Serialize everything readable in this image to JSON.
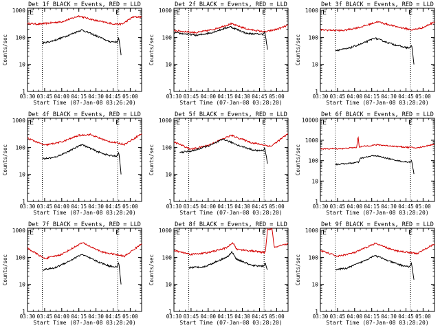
{
  "chart_data": [
    {
      "type": "line",
      "title": "Det 1f BLACK = Events, RED = LLD",
      "xlabel": "Start Time (07-Jan-08 03:26:20)",
      "ylabel": "Counts/sec",
      "x_ticks": [
        "03:30",
        "03:45",
        "04:00",
        "04:15",
        "04:30",
        "04:45",
        "05:00"
      ],
      "y_ticks": [
        "1",
        "10",
        "100",
        "1000"
      ],
      "ylim": [
        1,
        1200
      ],
      "log_y": true,
      "markers": [
        "03:43",
        "04:49"
      ],
      "marker_labels": [
        "E",
        "E"
      ],
      "series": [
        {
          "color": "#000000",
          "x_start": "03:43",
          "x_end": "04:52",
          "points": [
            [
              0,
              62
            ],
            [
              0.12,
              72
            ],
            [
              0.3,
              110
            ],
            [
              0.5,
              190
            ],
            [
              0.7,
              110
            ],
            [
              0.85,
              70
            ],
            [
              0.95,
              68
            ],
            [
              0.97,
              100
            ],
            [
              1,
              22
            ]
          ]
        },
        {
          "color": "#d40000",
          "x_start": "03:30",
          "x_end": "05:10",
          "points": [
            [
              0,
              330
            ],
            [
              0.1,
              310
            ],
            [
              0.3,
              380
            ],
            [
              0.45,
              620
            ],
            [
              0.6,
              420
            ],
            [
              0.75,
              320
            ],
            [
              0.83,
              310
            ],
            [
              0.92,
              560
            ],
            [
              1,
              580
            ]
          ]
        }
      ]
    },
    {
      "type": "line",
      "title": "Det 2f BLACK = Events, RED = LLD",
      "xlabel": "Start Time (07-Jan-08 03:28:20)",
      "ylabel": "Counts/sec",
      "x_ticks": [
        "03:30",
        "03:45",
        "04:00",
        "04:15",
        "04:30",
        "04:45",
        "05:00"
      ],
      "y_ticks": [
        "1",
        "10",
        "100",
        "1000"
      ],
      "ylim": [
        1,
        1200
      ],
      "log_y": true,
      "markers": [
        "03:43",
        "04:49"
      ],
      "marker_labels": [
        "E",
        "E"
      ],
      "series": [
        {
          "color": "#000000",
          "x_start": "03:30",
          "x_end": "04:52",
          "points": [
            [
              0,
              150
            ],
            [
              0.25,
              120
            ],
            [
              0.4,
              150
            ],
            [
              0.6,
              250
            ],
            [
              0.78,
              140
            ],
            [
              0.95,
              130
            ],
            [
              0.97,
              170
            ],
            [
              1,
              35
            ]
          ]
        },
        {
          "color": "#d40000",
          "x_start": "03:30",
          "x_end": "05:10",
          "points": [
            [
              0,
              180
            ],
            [
              0.2,
              150
            ],
            [
              0.35,
              200
            ],
            [
              0.5,
              320
            ],
            [
              0.65,
              200
            ],
            [
              0.8,
              160
            ],
            [
              0.9,
              200
            ],
            [
              1,
              280
            ]
          ]
        }
      ]
    },
    {
      "type": "line",
      "title": "Det 3f BLACK = Events, RED = LLD",
      "xlabel": "Start Time (07-Jan-08 03:28:20)",
      "ylabel": "Counts/sec",
      "x_ticks": [
        "03:30",
        "03:45",
        "04:00",
        "04:15",
        "04:30",
        "04:45",
        "05:00"
      ],
      "y_ticks": [
        "1",
        "10",
        "100",
        "1000"
      ],
      "ylim": [
        1,
        1200
      ],
      "log_y": true,
      "markers": [
        "03:43",
        "04:49"
      ],
      "marker_labels": [
        "E",
        "E"
      ],
      "series": [
        {
          "color": "#000000",
          "x_start": "03:43",
          "x_end": "04:52",
          "points": [
            [
              0,
              33
            ],
            [
              0.15,
              38
            ],
            [
              0.35,
              60
            ],
            [
              0.5,
              95
            ],
            [
              0.7,
              60
            ],
            [
              0.85,
              45
            ],
            [
              0.95,
              40
            ],
            [
              0.97,
              55
            ],
            [
              1,
              10
            ]
          ]
        },
        {
          "color": "#d40000",
          "x_start": "03:30",
          "x_end": "05:10",
          "points": [
            [
              0,
              190
            ],
            [
              0.2,
              180
            ],
            [
              0.35,
              240
            ],
            [
              0.5,
              380
            ],
            [
              0.65,
              260
            ],
            [
              0.8,
              190
            ],
            [
              0.9,
              230
            ],
            [
              1,
              380
            ]
          ]
        }
      ]
    },
    {
      "type": "line",
      "title": "Det 4f BLACK = Events, RED = LLD",
      "xlabel": "Start Time (07-Jan-08 03:28:20)",
      "ylabel": "Counts/sec",
      "x_ticks": [
        "03:30",
        "03:45",
        "04:00",
        "04:15",
        "04:30",
        "04:45",
        "05:00"
      ],
      "y_ticks": [
        "1",
        "10",
        "100",
        "1000"
      ],
      "ylim": [
        1,
        1200
      ],
      "log_y": true,
      "markers": [
        "03:43",
        "04:49"
      ],
      "marker_labels": [
        "E",
        "E"
      ],
      "series": [
        {
          "color": "#000000",
          "x_start": "03:43",
          "x_end": "04:52",
          "points": [
            [
              0,
              38
            ],
            [
              0.15,
              42
            ],
            [
              0.35,
              75
            ],
            [
              0.5,
              130
            ],
            [
              0.7,
              70
            ],
            [
              0.85,
              50
            ],
            [
              0.95,
              48
            ],
            [
              0.97,
              70
            ],
            [
              1,
              10
            ]
          ]
        },
        {
          "color": "#d40000",
          "x_start": "03:30",
          "x_end": "05:10",
          "points": [
            [
              0,
              220
            ],
            [
              0.15,
              120
            ],
            [
              0.3,
              160
            ],
            [
              0.45,
              280
            ],
            [
              0.55,
              300
            ],
            [
              0.7,
              170
            ],
            [
              0.85,
              130
            ],
            [
              1,
              320
            ]
          ]
        }
      ]
    },
    {
      "type": "line",
      "title": "Det 5f BLACK = Events, RED = LLD",
      "xlabel": "Start Time (07-Jan-08 03:28:20)",
      "ylabel": "Counts/sec",
      "x_ticks": [
        "03:30",
        "03:45",
        "04:00",
        "04:15",
        "04:30",
        "04:45",
        "05:00"
      ],
      "y_ticks": [
        "1",
        "10",
        "100",
        "1000"
      ],
      "ylim": [
        1,
        1200
      ],
      "log_y": true,
      "markers": [
        "03:43",
        "04:49"
      ],
      "marker_labels": [
        "E",
        "E"
      ],
      "series": [
        {
          "color": "#000000",
          "x_start": "03:35",
          "x_end": "04:52",
          "points": [
            [
              0,
              65
            ],
            [
              0.15,
              75
            ],
            [
              0.35,
              120
            ],
            [
              0.5,
              200
            ],
            [
              0.7,
              110
            ],
            [
              0.85,
              78
            ],
            [
              0.95,
              75
            ],
            [
              0.97,
              95
            ],
            [
              1,
              25
            ]
          ]
        },
        {
          "color": "#d40000",
          "x_start": "03:30",
          "x_end": "05:10",
          "points": [
            [
              0,
              160
            ],
            [
              0.15,
              85
            ],
            [
              0.3,
              120
            ],
            [
              0.5,
              280
            ],
            [
              0.68,
              150
            ],
            [
              0.85,
              110
            ],
            [
              1,
              320
            ]
          ]
        }
      ]
    },
    {
      "type": "line",
      "title": "Det 6f BLACK = Events, RED = LLD",
      "xlabel": "Start Time (07-Jan-08 03:28:20)",
      "ylabel": "Counts/sec",
      "x_ticks": [
        "03:30",
        "03:45",
        "04:00",
        "04:15",
        "04:30",
        "04:45",
        "05:00"
      ],
      "y_ticks": [
        "1",
        "10",
        "100",
        "1000",
        "10000"
      ],
      "ylim": [
        1,
        12000
      ],
      "log_y": true,
      "markers": [
        "03:43",
        "04:49"
      ],
      "marker_labels": [
        "E",
        "E"
      ],
      "series": [
        {
          "color": "#000000",
          "x_start": "03:43",
          "x_end": "04:52",
          "points": [
            [
              0,
              65
            ],
            [
              0.2,
              75
            ],
            [
              0.3,
              85
            ],
            [
              0.32,
              130
            ],
            [
              0.5,
              180
            ],
            [
              0.7,
              120
            ],
            [
              0.85,
              90
            ],
            [
              0.95,
              85
            ],
            [
              0.97,
              100
            ],
            [
              1,
              22
            ]
          ]
        },
        {
          "color": "#d40000",
          "x_start": "03:30",
          "x_end": "05:10",
          "points": [
            [
              0,
              380
            ],
            [
              0.2,
              390
            ],
            [
              0.32,
              450
            ],
            [
              0.33,
              1800
            ],
            [
              0.34,
              480
            ],
            [
              0.5,
              600
            ],
            [
              0.7,
              480
            ],
            [
              0.85,
              420
            ],
            [
              1,
              650
            ]
          ]
        }
      ]
    },
    {
      "type": "line",
      "title": "Det 7f BLACK = Events, RED = LLD",
      "xlabel": "Start Time (07-Jan-08 03:28:20)",
      "ylabel": "Counts/sec",
      "x_ticks": [
        "03:30",
        "03:45",
        "04:00",
        "04:15",
        "04:30",
        "04:45",
        "05:00"
      ],
      "y_ticks": [
        "1",
        "10",
        "100",
        "1000"
      ],
      "ylim": [
        1,
        1200
      ],
      "log_y": true,
      "markers": [
        "03:43",
        "04:49"
      ],
      "marker_labels": [
        "E",
        "E"
      ],
      "series": [
        {
          "color": "#000000",
          "x_start": "03:43",
          "x_end": "04:52",
          "points": [
            [
              0,
              35
            ],
            [
              0.15,
              40
            ],
            [
              0.35,
              75
            ],
            [
              0.5,
              130
            ],
            [
              0.7,
              70
            ],
            [
              0.85,
              48
            ],
            [
              0.95,
              45
            ],
            [
              0.97,
              65
            ],
            [
              1,
              10
            ]
          ]
        },
        {
          "color": "#d40000",
          "x_start": "03:30",
          "x_end": "05:10",
          "points": [
            [
              0,
              220
            ],
            [
              0.15,
              90
            ],
            [
              0.3,
              130
            ],
            [
              0.48,
              350
            ],
            [
              0.65,
              160
            ],
            [
              0.85,
              110
            ],
            [
              1,
              320
            ]
          ]
        }
      ]
    },
    {
      "type": "line",
      "title": "Det 8f BLACK = Events, RED = LLD",
      "xlabel": "Start Time (07-Jan-08 03:28:20)",
      "ylabel": "Counts/sec",
      "x_ticks": [
        "03:30",
        "03:45",
        "04:00",
        "04:15",
        "04:30",
        "04:45",
        "05:00"
      ],
      "y_ticks": [
        "1",
        "10",
        "100",
        "1000"
      ],
      "ylim": [
        1,
        1200
      ],
      "log_y": true,
      "markers": [
        "03:43",
        "04:49"
      ],
      "marker_labels": [
        "E",
        "E"
      ],
      "series": [
        {
          "color": "#000000",
          "x_start": "03:43",
          "x_end": "04:52",
          "points": [
            [
              0,
              42
            ],
            [
              0.2,
              45
            ],
            [
              0.35,
              70
            ],
            [
              0.5,
              110
            ],
            [
              0.55,
              160
            ],
            [
              0.6,
              90
            ],
            [
              0.8,
              50
            ],
            [
              0.95,
              48
            ],
            [
              0.97,
              60
            ],
            [
              1,
              35
            ]
          ]
        },
        {
          "color": "#d40000",
          "x_start": "03:30",
          "x_end": "05:10",
          "points": [
            [
              0,
              180
            ],
            [
              0.15,
              130
            ],
            [
              0.3,
              150
            ],
            [
              0.45,
              220
            ],
            [
              0.52,
              340
            ],
            [
              0.55,
              200
            ],
            [
              0.7,
              170
            ],
            [
              0.8,
              150
            ],
            [
              0.82,
              1100
            ],
            [
              0.86,
              1100
            ],
            [
              0.88,
              230
            ],
            [
              1,
              320
            ]
          ]
        }
      ]
    },
    {
      "type": "line",
      "title": "Det 9f BLACK = Events, RED = LLD",
      "xlabel": "Start Time (07-Jan-08 03:28:20)",
      "ylabel": "Counts/sec",
      "x_ticks": [
        "03:30",
        "03:45",
        "04:00",
        "04:15",
        "04:30",
        "04:45",
        "05:00"
      ],
      "y_ticks": [
        "1",
        "10",
        "100",
        "1000"
      ],
      "ylim": [
        1,
        1200
      ],
      "log_y": true,
      "markers": [
        "03:43",
        "04:49"
      ],
      "marker_labels": [
        "E",
        "E"
      ],
      "series": [
        {
          "color": "#000000",
          "x_start": "03:43",
          "x_end": "04:52",
          "points": [
            [
              0,
              35
            ],
            [
              0.15,
              40
            ],
            [
              0.35,
              70
            ],
            [
              0.5,
              120
            ],
            [
              0.7,
              70
            ],
            [
              0.85,
              50
            ],
            [
              0.95,
              45
            ],
            [
              0.97,
              60
            ],
            [
              1,
              15
            ]
          ]
        },
        {
          "color": "#d40000",
          "x_start": "03:30",
          "x_end": "05:10",
          "points": [
            [
              0,
              180
            ],
            [
              0.15,
              110
            ],
            [
              0.3,
              150
            ],
            [
              0.48,
              330
            ],
            [
              0.65,
              180
            ],
            [
              0.85,
              140
            ],
            [
              1,
              320
            ]
          ]
        }
      ]
    }
  ]
}
